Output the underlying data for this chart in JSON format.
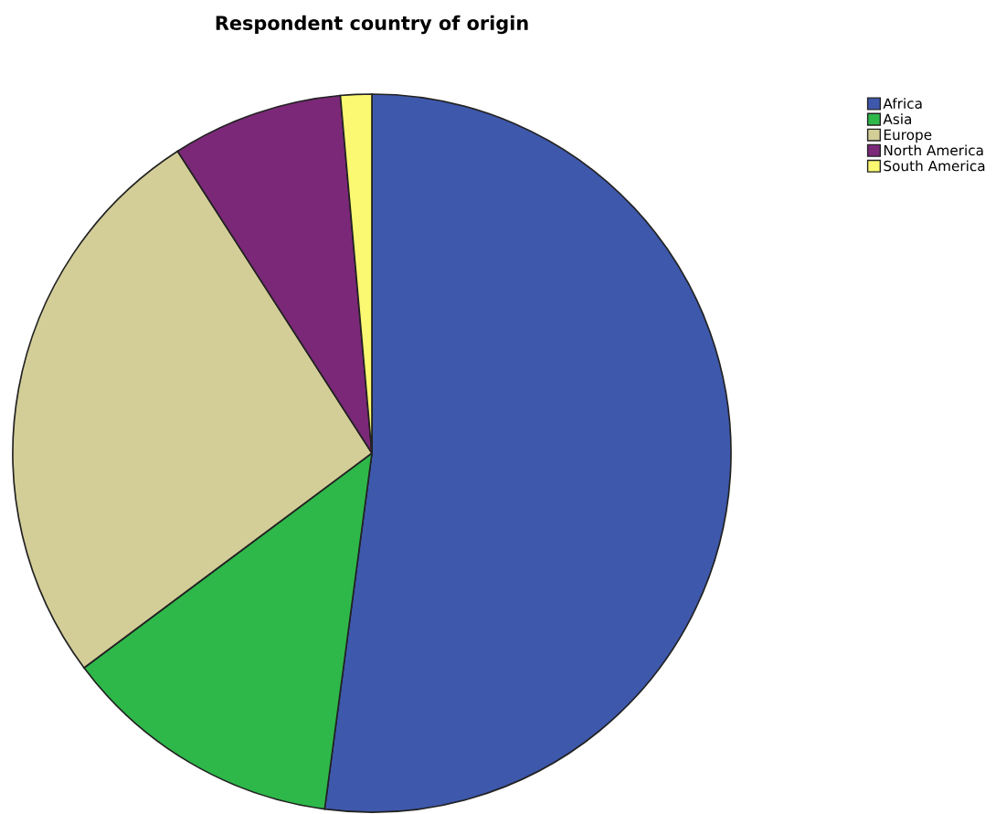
{
  "chart_data": {
    "type": "pie",
    "title": "Respondent country of origin",
    "categories": [
      "Africa",
      "Asia",
      "Europe",
      "North America",
      "South America"
    ],
    "values": [
      52.1,
      12.7,
      26.1,
      7.7,
      1.4
    ],
    "colors": [
      "#3e58ac",
      "#2eb84a",
      "#d3cd98",
      "#7b2878",
      "#fbf872"
    ],
    "legend": "top right"
  }
}
